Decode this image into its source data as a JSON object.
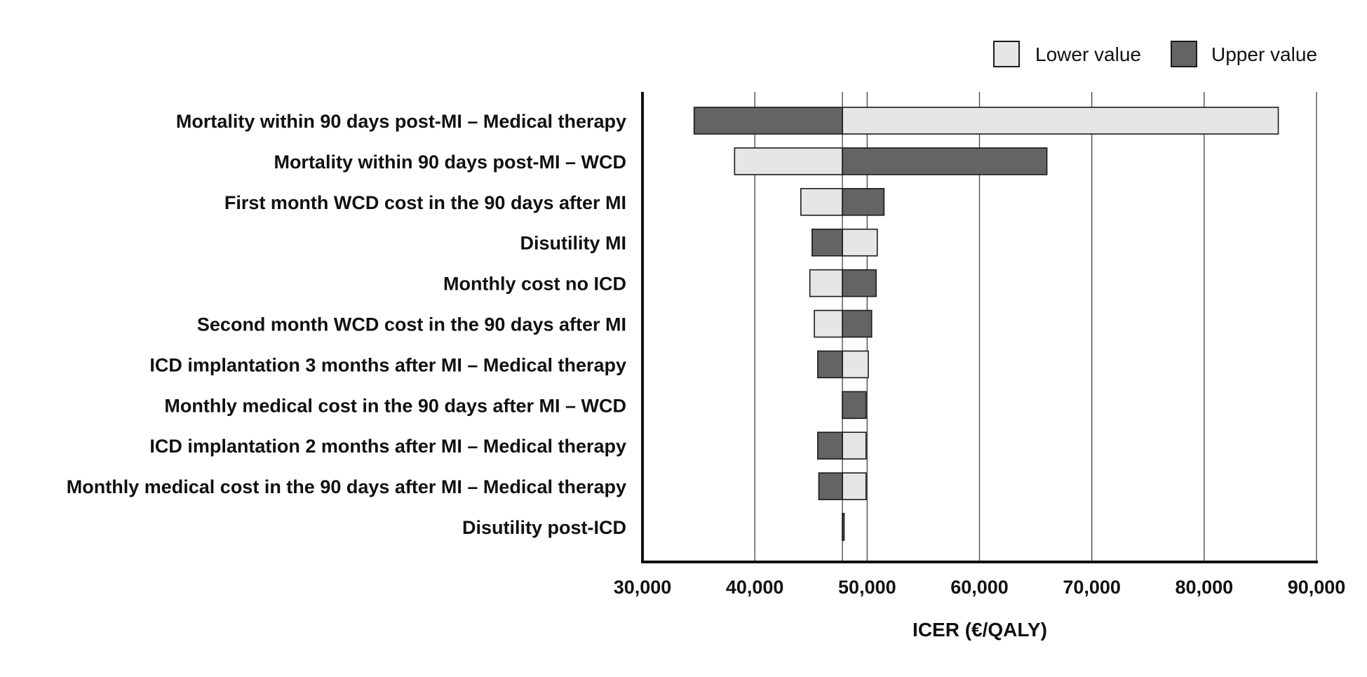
{
  "chart_data": {
    "type": "bar",
    "orientation": "horizontal",
    "variant": "tornado",
    "title": "",
    "xlabel": "ICER (€/QALY)",
    "ylabel": "",
    "xlim": [
      30000,
      90000
    ],
    "xticks": [
      30000,
      40000,
      50000,
      60000,
      70000,
      80000,
      90000
    ],
    "xtick_labels": [
      "30,000",
      "40,000",
      "50,000",
      "60,000",
      "70,000",
      "80,000",
      "90,000"
    ],
    "vertical_grid": true,
    "base_value": 47800,
    "legend": {
      "position": "top-right",
      "entries": [
        {
          "key": "lower",
          "label": "Lower value"
        },
        {
          "key": "upper",
          "label": "Upper value"
        }
      ]
    },
    "colors": {
      "lower": "#e6e6e6",
      "upper": "#646464",
      "stroke": "#1a1a1a"
    },
    "categories": [
      "Mortality within 90 days post-MI – Medical therapy",
      "Mortality within 90 days post-MI – WCD",
      "First month WCD cost in the 90 days after MI",
      "Disutility MI",
      "Monthly cost no ICD",
      "Second month WCD cost in the 90 days after MI",
      "ICD implantation 3 months after MI – Medical therapy",
      "Monthly medical cost in the 90 days after MI – WCD",
      "ICD implantation 2 months after MI – Medical therapy",
      "Monthly medical cost in the 90 days after MI – Medical therapy",
      "Disutility post-ICD"
    ],
    "series": [
      {
        "name": "Lower value",
        "key": "lower",
        "values": [
          86600,
          38200,
          44100,
          50900,
          44900,
          45300,
          50100,
          49100,
          49900,
          49900,
          47900
        ]
      },
      {
        "name": "Upper value",
        "key": "upper",
        "values": [
          34600,
          66000,
          51500,
          45100,
          50800,
          50400,
          45600,
          49900,
          45600,
          45700,
          47950
        ]
      }
    ]
  }
}
